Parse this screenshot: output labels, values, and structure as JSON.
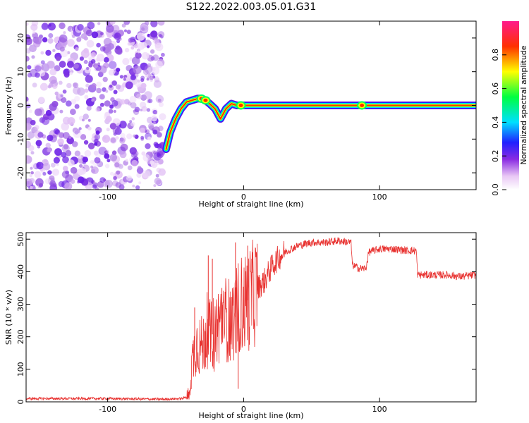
{
  "title": "S122.2022.003.05.01.G31",
  "chart_data": [
    {
      "type": "heatmap",
      "xlabel": "Height of straight line (km)",
      "ylabel": "Frequency (Hz)",
      "xlim": [
        -160,
        171
      ],
      "ylim": [
        -25,
        25
      ],
      "xticks": [
        -100,
        0,
        100
      ],
      "yticks": [
        -20,
        -10,
        0,
        10,
        20
      ],
      "noise_region": {
        "x": [
          -160,
          -57
        ],
        "y": [
          -25,
          25
        ]
      },
      "signal_ridge": {
        "x": [
          -57,
          -54,
          -50,
          -46,
          -42,
          -38,
          -34,
          -31,
          -28,
          -25,
          -21,
          -17,
          -13,
          -9,
          -5,
          0,
          5,
          10,
          20,
          40,
          80,
          120,
          171
        ],
        "y": [
          -13,
          -8,
          -4,
          -1,
          1,
          1.5,
          2,
          2,
          1.5,
          0.5,
          -1,
          -4,
          -1,
          0.5,
          0,
          0,
          0,
          0,
          0,
          0,
          0,
          0,
          0
        ],
        "peak_at_x": [
          -31,
          -28,
          -2,
          87
        ]
      },
      "colorbar": {
        "label": "Normalized spectral amplitude",
        "range": [
          0,
          1
        ],
        "ticks": [
          0.0,
          0.2,
          0.4,
          0.6,
          0.8
        ]
      }
    },
    {
      "type": "line",
      "xlabel": "Height of straight line (km)",
      "ylabel": "SNR (10 * v/v)",
      "xlim": [
        -160,
        171
      ],
      "ylim": [
        0,
        520
      ],
      "xticks": [
        -100,
        0,
        100
      ],
      "yticks": [
        0,
        100,
        200,
        300,
        400,
        500
      ],
      "series": [
        {
          "color": "#e8312f",
          "envelope": {
            "x": [
              -160,
              -100,
              -60,
              -45,
              -40,
              -38,
              -35,
              -30,
              -27,
              -24,
              -20,
              -15,
              -10,
              -6,
              -3,
              0,
              5,
              10,
              15,
              20,
              25,
              30,
              40,
              50,
              60,
              70,
              79,
              80,
              85,
              90,
              92,
              100,
              110,
              120,
              127,
              128,
              140,
              150,
              160,
              171
            ],
            "y": [
              10,
              10,
              8,
              10,
              20,
              120,
              180,
              170,
              220,
              200,
              230,
              260,
              250,
              260,
              300,
              300,
              320,
              350,
              370,
              410,
              440,
              460,
              480,
              490,
              490,
              495,
              490,
              420,
              410,
              410,
              460,
              470,
              470,
              465,
              465,
              390,
              390,
              390,
              385,
              390
            ]
          },
          "spikes": [
            {
              "x": -36,
              "y": 290
            },
            {
              "x": -26,
              "y": 450
            },
            {
              "x": -23,
              "y": 440
            },
            {
              "x": -16,
              "y": 350
            },
            {
              "x": -6,
              "y": 490
            },
            {
              "x": -4,
              "y": 40
            },
            {
              "x": 3,
              "y": 480
            },
            {
              "x": 6,
              "y": 440
            }
          ]
        }
      ]
    }
  ]
}
